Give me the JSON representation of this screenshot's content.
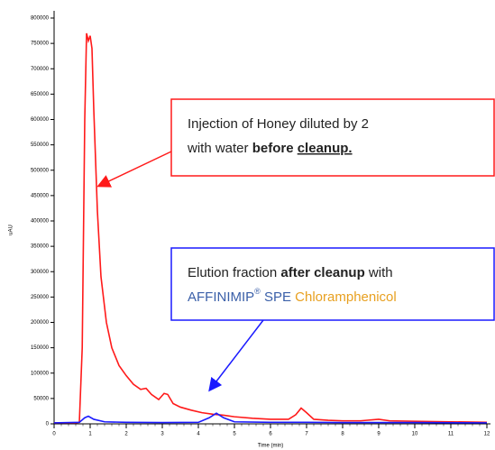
{
  "chart_data": {
    "type": "line",
    "xlabel": "Time (min)",
    "ylabel": "uAU",
    "xlim": [
      0,
      12
    ],
    "ylim": [
      0,
      800000
    ],
    "xticks": [
      0,
      1,
      2,
      3,
      4,
      5,
      6,
      7,
      8,
      9,
      10,
      11,
      12
    ],
    "yticks": [
      0,
      50000,
      100000,
      150000,
      200000,
      250000,
      300000,
      350000,
      400000,
      450000,
      500000,
      550000,
      600000,
      650000,
      700000,
      750000,
      800000
    ],
    "series": [
      {
        "color": "#ff1a1a",
        "x": [
          0,
          0.6,
          0.7,
          0.78,
          0.85,
          0.9,
          0.95,
          1.0,
          1.05,
          1.1,
          1.2,
          1.3,
          1.45,
          1.6,
          1.8,
          2.0,
          2.2,
          2.4,
          2.55,
          2.7,
          2.9,
          3.05,
          3.15,
          3.3,
          3.5,
          3.8,
          4.1,
          4.4,
          4.7,
          5.0,
          5.5,
          6.0,
          6.5,
          6.7,
          6.85,
          7.0,
          7.2,
          7.6,
          8.0,
          8.5,
          9.0,
          9.3,
          10.0,
          11.0,
          12.0
        ],
        "values": [
          2000,
          2000,
          3000,
          150000,
          600000,
          770000,
          755000,
          765000,
          740000,
          620000,
          420000,
          290000,
          200000,
          150000,
          115000,
          95000,
          78000,
          68000,
          70000,
          58000,
          48000,
          60000,
          58000,
          40000,
          33000,
          27000,
          22000,
          19000,
          17000,
          14000,
          11000,
          9000,
          9000,
          18000,
          31000,
          22000,
          9000,
          7000,
          6000,
          6000,
          9000,
          6000,
          5000,
          4000,
          3000
        ]
      },
      {
        "color": "#1a1aff",
        "x": [
          0,
          0.7,
          0.85,
          0.95,
          1.1,
          1.4,
          2.0,
          3.0,
          4.0,
          4.3,
          4.5,
          4.7,
          5.0,
          6.0,
          7.0,
          8.0,
          10.0,
          12.0
        ],
        "values": [
          2000,
          3000,
          12000,
          15000,
          9000,
          4000,
          3000,
          2500,
          3000,
          12000,
          21000,
          12000,
          4000,
          3000,
          3000,
          2500,
          2500,
          2000
        ]
      }
    ],
    "annotations": [
      {
        "color": "#ff1a1a",
        "lines": [
          [
            {
              "text": "Injection of Honey diluted by 2"
            }
          ],
          [
            {
              "text": "with water "
            },
            {
              "text": "before ",
              "bold": true
            },
            {
              "text": "cleanup.",
              "bold": true,
              "underline": true
            }
          ]
        ]
      },
      {
        "color": "#1a1aff",
        "lines": [
          [
            {
              "text": "Elution fraction "
            },
            {
              "text": "after cleanup",
              "bold": true
            },
            {
              "text": " with"
            }
          ],
          [
            {
              "text": "AFFINIMIP",
              "color": "#3a5fa8"
            },
            {
              "text": "®",
              "color": "#3a5fa8",
              "sup": true
            },
            {
              "text": " SPE ",
              "color": "#3a5fa8"
            },
            {
              "text": "Chloramphenicol",
              "color": "#e8a020"
            }
          ]
        ]
      }
    ]
  }
}
